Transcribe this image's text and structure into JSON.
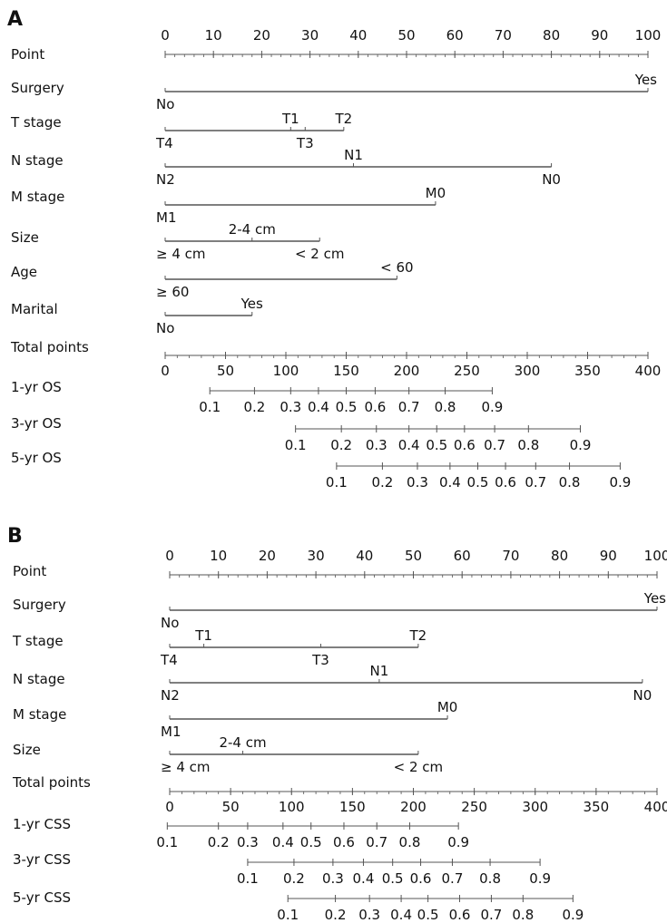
{
  "chart_data": [
    {
      "type": "nomogram",
      "panel_label": "A",
      "rows": [
        {
          "label": "Point",
          "kind": "points",
          "range": [
            0,
            100
          ],
          "major_ticks": [
            0,
            10,
            20,
            30,
            40,
            50,
            60,
            70,
            80,
            90,
            100
          ],
          "tick_labels": [
            "0",
            "10",
            "20",
            "30",
            "40",
            "50",
            "60",
            "70",
            "80",
            "90",
            "100"
          ]
        },
        {
          "label": "Surgery",
          "kind": "variable",
          "levels": [
            {
              "text": "No",
              "points": 0,
              "label_side": "below"
            },
            {
              "text": "Yes",
              "points": 100,
              "label_side": "above"
            }
          ]
        },
        {
          "label": "T stage",
          "kind": "variable",
          "levels": [
            {
              "text": "T4",
              "points": 0,
              "label_side": "below"
            },
            {
              "text": "T1",
              "points": 26,
              "label_side": "above"
            },
            {
              "text": "T3",
              "points": 29,
              "label_side": "below"
            },
            {
              "text": "T2",
              "points": 37,
              "label_side": "above"
            }
          ]
        },
        {
          "label": "N stage",
          "kind": "variable",
          "levels": [
            {
              "text": "N2",
              "points": 0,
              "label_side": "below"
            },
            {
              "text": "N1",
              "points": 39,
              "label_side": "above"
            },
            {
              "text": "N0",
              "points": 80,
              "label_side": "below"
            }
          ]
        },
        {
          "label": "M stage",
          "kind": "variable",
          "levels": [
            {
              "text": "M1",
              "points": 0,
              "label_side": "below"
            },
            {
              "text": "M0",
              "points": 56,
              "label_side": "above"
            }
          ]
        },
        {
          "label": "Size",
          "kind": "variable",
          "levels": [
            {
              "text": "≥ 4 cm",
              "points": 0,
              "label_side": "below"
            },
            {
              "text": "2-4 cm",
              "points": 18,
              "label_side": "above"
            },
            {
              "text": "< 2 cm",
              "points": 32,
              "label_side": "below"
            }
          ]
        },
        {
          "label": "Age",
          "kind": "variable",
          "levels": [
            {
              "text": "≥ 60",
              "points": 0,
              "label_side": "below"
            },
            {
              "text": "< 60",
              "points": 48,
              "label_side": "above"
            }
          ]
        },
        {
          "label": "Marital",
          "kind": "variable",
          "levels": [
            {
              "text": "No",
              "points": 0,
              "label_side": "below"
            },
            {
              "text": "Yes",
              "points": 18,
              "label_side": "above"
            }
          ]
        },
        {
          "label": "Total points",
          "kind": "total",
          "range": [
            0,
            400
          ],
          "major_ticks": [
            0,
            50,
            100,
            150,
            200,
            250,
            300,
            350,
            400
          ],
          "tick_labels": [
            "0",
            "50",
            "100",
            "150",
            "200",
            "250",
            "300",
            "350",
            "400"
          ]
        },
        {
          "label": "1-yr OS",
          "kind": "probability",
          "ticks": [
            {
              "text": "0.1",
              "total": 37
            },
            {
              "text": "0.2",
              "total": 74
            },
            {
              "text": "0.3",
              "total": 104
            },
            {
              "text": "0.4",
              "total": 127
            },
            {
              "text": "0.5",
              "total": 150
            },
            {
              "text": "0.6",
              "total": 174
            },
            {
              "text": "0.7",
              "total": 202
            },
            {
              "text": "0.8",
              "total": 232
            },
            {
              "text": "0.9",
              "total": 271
            }
          ]
        },
        {
          "label": "3-yr OS",
          "kind": "probability",
          "ticks": [
            {
              "text": "0.1",
              "total": 108
            },
            {
              "text": "0.2",
              "total": 146
            },
            {
              "text": "0.3",
              "total": 175
            },
            {
              "text": "0.4",
              "total": 202
            },
            {
              "text": "0.5",
              "total": 225
            },
            {
              "text": "0.6",
              "total": 248
            },
            {
              "text": "0.7",
              "total": 273
            },
            {
              "text": "0.8",
              "total": 301
            },
            {
              "text": "0.9",
              "total": 344
            }
          ]
        },
        {
          "label": "5-yr OS",
          "kind": "probability",
          "ticks": [
            {
              "text": "0.1",
              "total": 142
            },
            {
              "text": "0.2",
              "total": 180
            },
            {
              "text": "0.3",
              "total": 209
            },
            {
              "text": "0.4",
              "total": 236
            },
            {
              "text": "0.5",
              "total": 259
            },
            {
              "text": "0.6",
              "total": 282
            },
            {
              "text": "0.7",
              "total": 307
            },
            {
              "text": "0.8",
              "total": 335
            },
            {
              "text": "0.9",
              "total": 377
            }
          ]
        }
      ]
    },
    {
      "type": "nomogram",
      "panel_label": "B",
      "rows": [
        {
          "label": "Point",
          "kind": "points",
          "range": [
            0,
            100
          ],
          "major_ticks": [
            0,
            10,
            20,
            30,
            40,
            50,
            60,
            70,
            80,
            90,
            100
          ],
          "tick_labels": [
            "0",
            "10",
            "20",
            "30",
            "40",
            "50",
            "60",
            "70",
            "80",
            "90",
            "100"
          ]
        },
        {
          "label": "Surgery",
          "kind": "variable",
          "levels": [
            {
              "text": "No",
              "points": 0,
              "label_side": "below"
            },
            {
              "text": "Yes",
              "points": 100,
              "label_side": "above"
            }
          ]
        },
        {
          "label": "T stage",
          "kind": "variable",
          "levels": [
            {
              "text": "T4",
              "points": 0,
              "label_side": "below"
            },
            {
              "text": "T1",
              "points": 7,
              "label_side": "above"
            },
            {
              "text": "T3",
              "points": 31,
              "label_side": "below"
            },
            {
              "text": "T2",
              "points": 51,
              "label_side": "above"
            }
          ]
        },
        {
          "label": "N stage",
          "kind": "variable",
          "levels": [
            {
              "text": "N2",
              "points": 0,
              "label_side": "below"
            },
            {
              "text": "N1",
              "points": 43,
              "label_side": "above"
            },
            {
              "text": "N0",
              "points": 97,
              "label_side": "below"
            }
          ]
        },
        {
          "label": "M stage",
          "kind": "variable",
          "levels": [
            {
              "text": "M1",
              "points": 0,
              "label_side": "below"
            },
            {
              "text": "M0",
              "points": 57,
              "label_side": "above"
            }
          ]
        },
        {
          "label": "Size",
          "kind": "variable",
          "levels": [
            {
              "text": "≥ 4 cm",
              "points": 0,
              "label_side": "below"
            },
            {
              "text": "2-4 cm",
              "points": 15,
              "label_side": "above"
            },
            {
              "text": "< 2 cm",
              "points": 51,
              "label_side": "below"
            }
          ]
        },
        {
          "label": "Total points",
          "kind": "total",
          "range": [
            0,
            400
          ],
          "major_ticks": [
            0,
            50,
            100,
            150,
            200,
            250,
            300,
            350,
            400
          ],
          "tick_labels": [
            "0",
            "50",
            "100",
            "150",
            "200",
            "250",
            "300",
            "350",
            "400"
          ]
        },
        {
          "label": "1-yr CSS",
          "kind": "probability",
          "ticks": [
            {
              "text": "0.1",
              "total": -2
            },
            {
              "text": "0.2",
              "total": 40
            },
            {
              "text": "0.3",
              "total": 64
            },
            {
              "text": "0.4",
              "total": 93
            },
            {
              "text": "0.5",
              "total": 116
            },
            {
              "text": "0.6",
              "total": 143
            },
            {
              "text": "0.7",
              "total": 170
            },
            {
              "text": "0.8",
              "total": 197
            },
            {
              "text": "0.9",
              "total": 237
            }
          ]
        },
        {
          "label": "3-yr CSS",
          "kind": "probability",
          "ticks": [
            {
              "text": "0.1",
              "total": 64
            },
            {
              "text": "0.2",
              "total": 102
            },
            {
              "text": "0.3",
              "total": 134
            },
            {
              "text": "0.4",
              "total": 159
            },
            {
              "text": "0.5",
              "total": 183
            },
            {
              "text": "0.6",
              "total": 206
            },
            {
              "text": "0.7",
              "total": 232
            },
            {
              "text": "0.8",
              "total": 263
            },
            {
              "text": "0.9",
              "total": 304
            }
          ]
        },
        {
          "label": "5-yr CSS",
          "kind": "probability",
          "ticks": [
            {
              "text": "0.1",
              "total": 97
            },
            {
              "text": "0.2",
              "total": 136
            },
            {
              "text": "0.3",
              "total": 164
            },
            {
              "text": "0.4",
              "total": 190
            },
            {
              "text": "0.5",
              "total": 212
            },
            {
              "text": "0.6",
              "total": 238
            },
            {
              "text": "0.7",
              "total": 264
            },
            {
              "text": "0.8",
              "total": 290
            },
            {
              "text": "0.9",
              "total": 331
            }
          ]
        }
      ]
    }
  ]
}
